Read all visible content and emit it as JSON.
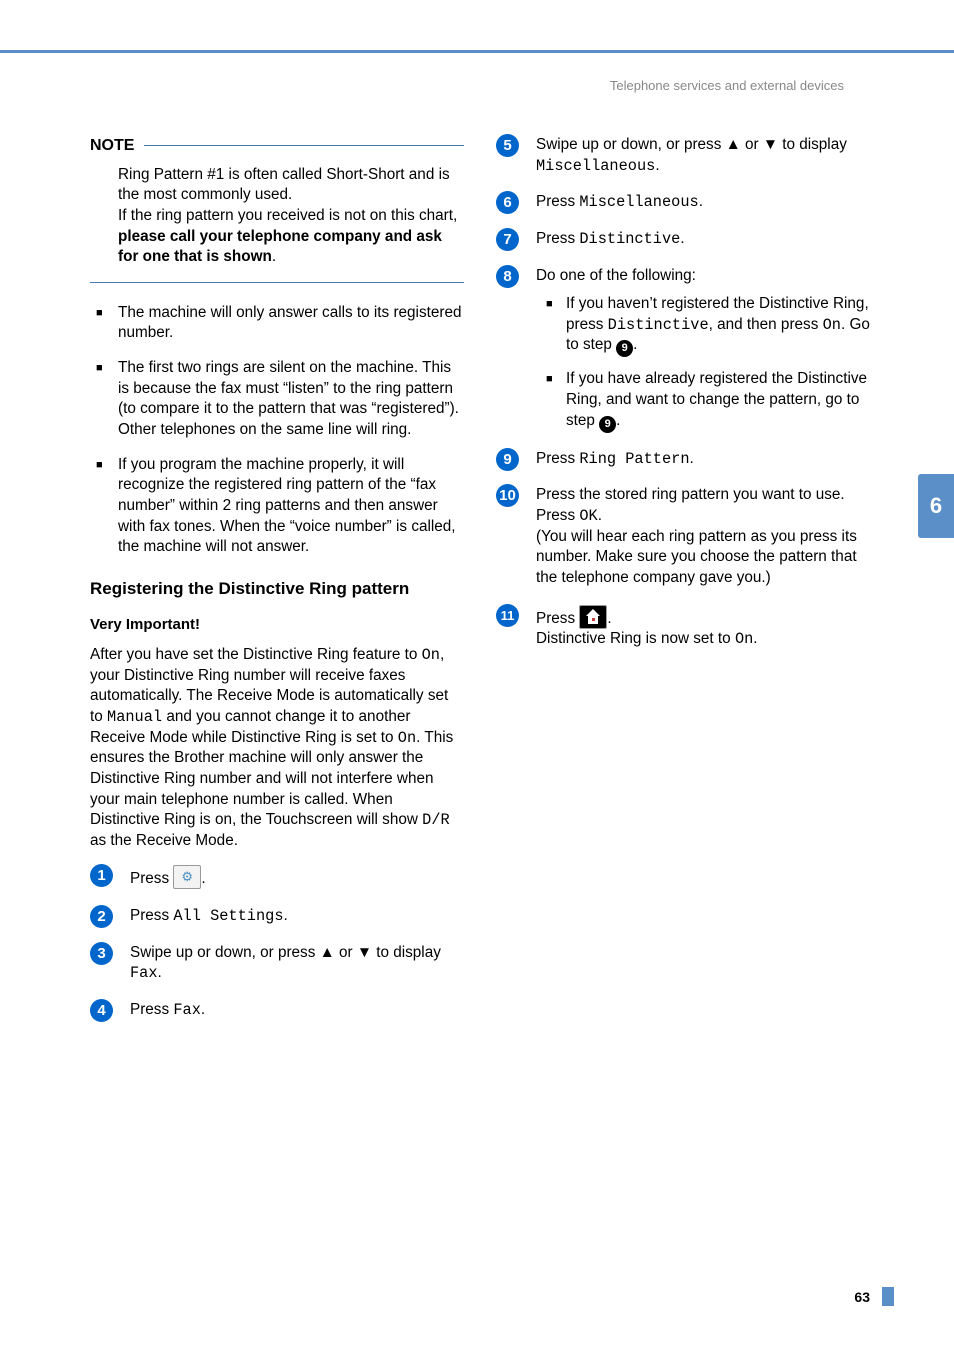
{
  "page": {
    "header": "Telephone services and external devices",
    "chapter_tab": "6",
    "page_number": "63"
  },
  "colors": {
    "accent": "#5b8fc7",
    "step_bg": "#0066cc",
    "text": "#000000",
    "header_text": "#888888"
  },
  "note": {
    "label": "NOTE",
    "body_pre": "Ring Pattern #1 is often called Short-Short and is the most commonly used.\nIf the ring pattern you received is not on this chart, ",
    "body_bold": "please call your telephone company and ask for one that is shown",
    "body_post": "."
  },
  "info_bullets": [
    "The machine will only answer calls to its registered number.",
    "The first two rings are silent on the machine. This is because the fax must “listen” to the ring pattern (to compare it to the pattern that was “registered”). Other telephones on the same line will ring.",
    "If you program the machine properly, it will recognize the registered ring pattern of the “fax number” within 2 ring patterns and then answer with fax tones. When the “voice number” is called, the machine will not answer."
  ],
  "section": {
    "title": "Registering the Distinctive Ring pattern",
    "subtitle": "Very Important!",
    "intro_parts": [
      "After you have set the Distinctive Ring feature to ",
      "On",
      ", your Distinctive Ring number will receive faxes automatically. The Receive Mode is automatically set to ",
      "Manual",
      " and you cannot change it to another Receive Mode while Distinctive Ring is set to ",
      "On",
      ". This ensures the Brother machine will only answer the Distinctive Ring number and will not interfere when your main telephone number is called. When Distinctive Ring is on, the Touchscreen will show ",
      "D/R",
      " as the Receive Mode."
    ]
  },
  "steps": {
    "s1": {
      "n": "1",
      "pre": "Press ",
      "post": "."
    },
    "s2": {
      "n": "2",
      "pre": "Press ",
      "code": "All Settings",
      "post": "."
    },
    "s3": {
      "n": "3",
      "pre": "Swipe up or down, or press ▲ or ▼ to display ",
      "code": "Fax",
      "post": "."
    },
    "s4": {
      "n": "4",
      "pre": "Press ",
      "code": "Fax",
      "post": "."
    },
    "s5": {
      "n": "5",
      "pre": "Swipe up or down, or press ▲ or ▼ to display ",
      "code": "Miscellaneous",
      "post": "."
    },
    "s6": {
      "n": "6",
      "pre": "Press ",
      "code": "Miscellaneous",
      "post": "."
    },
    "s7": {
      "n": "7",
      "pre": "Press ",
      "code": "Distinctive",
      "post": "."
    },
    "s8": {
      "n": "8",
      "line": "Do one of the following:",
      "opt_a": {
        "pre": "If you haven’t registered the Distinctive Ring, press ",
        "code1": "Distinctive",
        "mid": ", and then press ",
        "code2": "On",
        "post": ". Go to step ",
        "ref": "9",
        "tail": "."
      },
      "opt_b": {
        "pre": "If you have already registered the Distinctive Ring, and want to change the pattern, go to step ",
        "ref": "9",
        "tail": "."
      }
    },
    "s9": {
      "n": "9",
      "pre": "Press ",
      "code": "Ring Pattern",
      "post": "."
    },
    "s10": {
      "n": "10",
      "line1": "Press the stored ring pattern you want to use.",
      "line2_pre": "Press ",
      "line2_code": "OK",
      "line2_post": ".",
      "line3": "(You will hear each ring pattern as you press its number. Make sure you choose the pattern that the telephone company gave you.)"
    },
    "s11": {
      "n": "11",
      "pre": "Press ",
      "post": ".",
      "line2_pre": "Distinctive Ring is now set to ",
      "line2_code": "On",
      "line2_post": "."
    }
  }
}
